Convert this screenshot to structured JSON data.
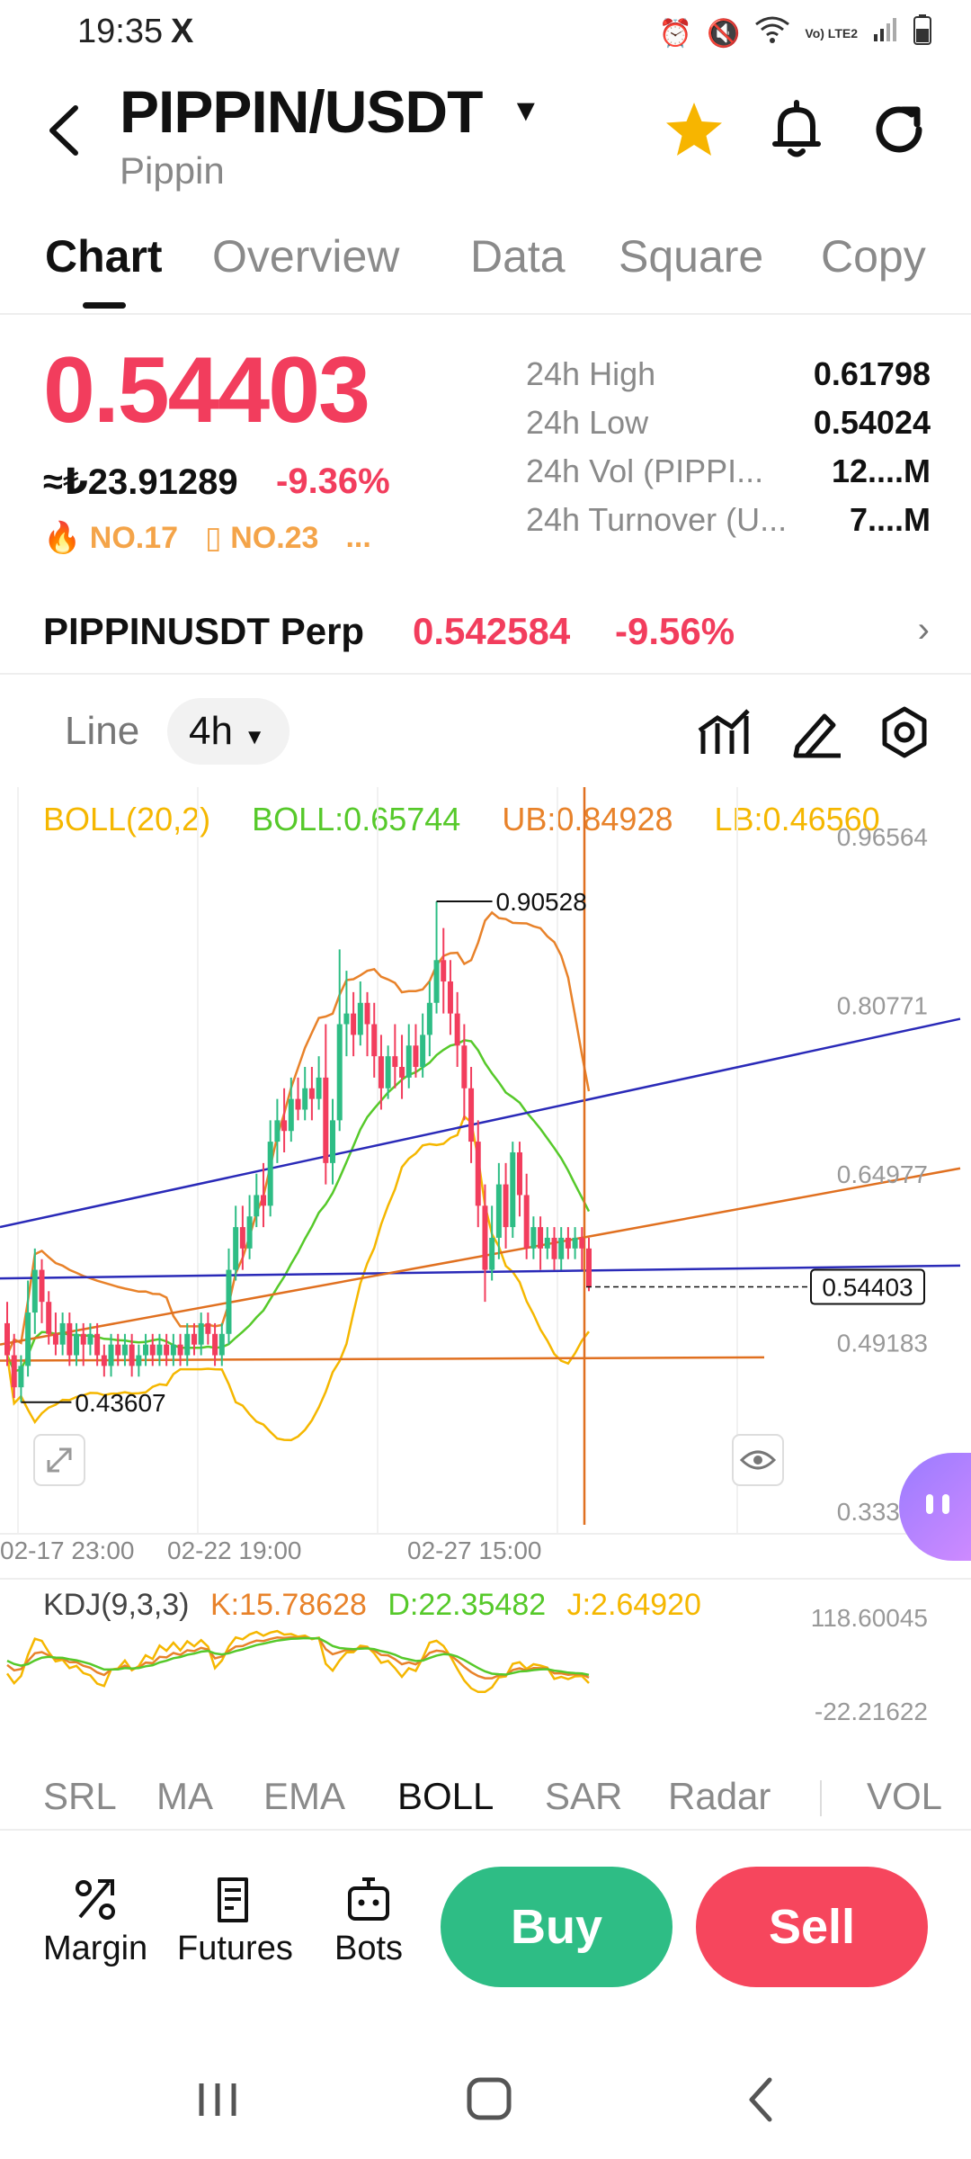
{
  "status": {
    "time": "19:35",
    "x_icon": "X",
    "network": "Vo) LTE2"
  },
  "header": {
    "title": "PIPPIN/USDT",
    "subtitle": "Pippin",
    "icons": [
      "back-arrow-icon",
      "star-icon",
      "bell-icon",
      "refresh-icon"
    ],
    "star_color": "#f7b500"
  },
  "tabs": [
    "Chart",
    "Overview",
    "Data",
    "Square",
    "Copy"
  ],
  "active_tab": "Chart",
  "price": {
    "last": "0.54403",
    "fiat": "≈₺23.91289",
    "change_pct": "-9.36%",
    "rank1": "NO.17",
    "rank2": "NO.23",
    "rank_more": "...",
    "stats": [
      {
        "label": "24h  High",
        "value": "0.61798"
      },
      {
        "label": "24h  Low",
        "value": "0.54024"
      },
      {
        "label": "24h  Vol (PIPPI...",
        "value": "12....M"
      },
      {
        "label": "24h  Turnover (U...",
        "value": "7....M"
      }
    ]
  },
  "perp": {
    "name": "PIPPINUSDT Perp",
    "price": "0.542584",
    "change_pct": "-9.56%"
  },
  "toolbar": {
    "line_label": "Line",
    "interval_label": "4h"
  },
  "boll": {
    "name": "BOLL(20,2)",
    "mid": "BOLL:0.65744",
    "ub": "UB:0.84928",
    "lb": "LB:0.46560"
  },
  "kdj": {
    "name": "KDJ(9,3,3)",
    "k": "K:15.78628",
    "d": "D:22.35482",
    "j": "J:2.64920",
    "axis_top": "118.60045",
    "axis_bottom": "-22.21622"
  },
  "chart_data": {
    "type": "candlestick",
    "y_axis_labels": [
      "0.96564",
      "0.80771",
      "0.64977",
      "0.49183",
      "0.33389"
    ],
    "ylim": [
      0.33389,
      0.96564
    ],
    "x_labels": [
      "02-17 23:00",
      "02-22 19:00",
      "02-27 15:00"
    ],
    "annotations": {
      "high": "0.90528",
      "low": "0.43607",
      "last": "0.54403"
    },
    "candles": [
      [
        0.51,
        0.48,
        0.53,
        0.47
      ],
      [
        0.48,
        0.45,
        0.5,
        0.44
      ],
      [
        0.45,
        0.47,
        0.48,
        0.436
      ],
      [
        0.47,
        0.52,
        0.55,
        0.46
      ],
      [
        0.52,
        0.56,
        0.58,
        0.5
      ],
      [
        0.56,
        0.53,
        0.57,
        0.51
      ],
      [
        0.53,
        0.5,
        0.54,
        0.49
      ],
      [
        0.5,
        0.49,
        0.52,
        0.48
      ],
      [
        0.49,
        0.51,
        0.52,
        0.48
      ],
      [
        0.51,
        0.48,
        0.52,
        0.47
      ],
      [
        0.48,
        0.5,
        0.51,
        0.47
      ],
      [
        0.5,
        0.49,
        0.51,
        0.47
      ],
      [
        0.49,
        0.5,
        0.51,
        0.48
      ],
      [
        0.5,
        0.48,
        0.51,
        0.47
      ],
      [
        0.48,
        0.47,
        0.49,
        0.46
      ],
      [
        0.47,
        0.49,
        0.5,
        0.46
      ],
      [
        0.49,
        0.48,
        0.5,
        0.47
      ],
      [
        0.48,
        0.49,
        0.5,
        0.47
      ],
      [
        0.49,
        0.47,
        0.5,
        0.46
      ],
      [
        0.47,
        0.48,
        0.49,
        0.46
      ],
      [
        0.48,
        0.49,
        0.5,
        0.47
      ],
      [
        0.49,
        0.48,
        0.5,
        0.47
      ],
      [
        0.48,
        0.49,
        0.5,
        0.47
      ],
      [
        0.49,
        0.48,
        0.5,
        0.47
      ],
      [
        0.48,
        0.49,
        0.5,
        0.47
      ],
      [
        0.49,
        0.48,
        0.5,
        0.47
      ],
      [
        0.48,
        0.5,
        0.51,
        0.47
      ],
      [
        0.5,
        0.49,
        0.51,
        0.48
      ],
      [
        0.49,
        0.51,
        0.52,
        0.48
      ],
      [
        0.51,
        0.5,
        0.52,
        0.49
      ],
      [
        0.5,
        0.48,
        0.51,
        0.47
      ],
      [
        0.48,
        0.5,
        0.51,
        0.47
      ],
      [
        0.5,
        0.56,
        0.58,
        0.49
      ],
      [
        0.56,
        0.6,
        0.62,
        0.55
      ],
      [
        0.6,
        0.58,
        0.62,
        0.56
      ],
      [
        0.58,
        0.61,
        0.63,
        0.57
      ],
      [
        0.61,
        0.63,
        0.65,
        0.6
      ],
      [
        0.63,
        0.62,
        0.66,
        0.6
      ],
      [
        0.62,
        0.68,
        0.7,
        0.61
      ],
      [
        0.68,
        0.7,
        0.72,
        0.66
      ],
      [
        0.7,
        0.69,
        0.73,
        0.67
      ],
      [
        0.69,
        0.72,
        0.74,
        0.68
      ],
      [
        0.72,
        0.71,
        0.74,
        0.7
      ],
      [
        0.71,
        0.73,
        0.75,
        0.7
      ],
      [
        0.73,
        0.72,
        0.75,
        0.7
      ],
      [
        0.72,
        0.74,
        0.76,
        0.71
      ],
      [
        0.74,
        0.66,
        0.79,
        0.64
      ],
      [
        0.66,
        0.7,
        0.72,
        0.64
      ],
      [
        0.7,
        0.79,
        0.86,
        0.69
      ],
      [
        0.79,
        0.8,
        0.84,
        0.76
      ],
      [
        0.8,
        0.78,
        0.82,
        0.76
      ],
      [
        0.78,
        0.81,
        0.83,
        0.77
      ],
      [
        0.81,
        0.79,
        0.82,
        0.76
      ],
      [
        0.79,
        0.76,
        0.81,
        0.74
      ],
      [
        0.76,
        0.73,
        0.78,
        0.71
      ],
      [
        0.73,
        0.76,
        0.77,
        0.72
      ],
      [
        0.76,
        0.75,
        0.79,
        0.73
      ],
      [
        0.75,
        0.74,
        0.78,
        0.72
      ],
      [
        0.74,
        0.77,
        0.79,
        0.73
      ],
      [
        0.77,
        0.75,
        0.79,
        0.74
      ],
      [
        0.75,
        0.78,
        0.8,
        0.74
      ],
      [
        0.78,
        0.81,
        0.83,
        0.76
      ],
      [
        0.81,
        0.85,
        0.905,
        0.8
      ],
      [
        0.85,
        0.83,
        0.88,
        0.8
      ],
      [
        0.83,
        0.8,
        0.85,
        0.78
      ],
      [
        0.8,
        0.77,
        0.82,
        0.75
      ],
      [
        0.77,
        0.73,
        0.79,
        0.7
      ],
      [
        0.73,
        0.68,
        0.75,
        0.66
      ],
      [
        0.68,
        0.62,
        0.7,
        0.6
      ],
      [
        0.62,
        0.56,
        0.64,
        0.53
      ],
      [
        0.56,
        0.59,
        0.62,
        0.55
      ],
      [
        0.59,
        0.64,
        0.66,
        0.57
      ],
      [
        0.64,
        0.6,
        0.66,
        0.58
      ],
      [
        0.6,
        0.67,
        0.68,
        0.59
      ],
      [
        0.67,
        0.63,
        0.68,
        0.61
      ],
      [
        0.63,
        0.58,
        0.65,
        0.57
      ],
      [
        0.58,
        0.6,
        0.61,
        0.57
      ],
      [
        0.6,
        0.58,
        0.61,
        0.56
      ],
      [
        0.58,
        0.59,
        0.6,
        0.57
      ],
      [
        0.59,
        0.57,
        0.6,
        0.56
      ],
      [
        0.57,
        0.59,
        0.6,
        0.56
      ],
      [
        0.59,
        0.58,
        0.6,
        0.57
      ],
      [
        0.58,
        0.59,
        0.6,
        0.57
      ],
      [
        0.59,
        0.58,
        0.6,
        0.56
      ],
      [
        0.58,
        0.544,
        0.59,
        0.54
      ]
    ],
    "colors": {
      "up": "#2ebd85",
      "down": "#f23d5d"
    }
  },
  "indicator_tabs": [
    "SRL",
    "MA",
    "EMA",
    "BOLL",
    "SAR",
    "Radar",
    "VOL"
  ],
  "active_indicator": "BOLL",
  "bottom": {
    "margin": "Margin",
    "futures": "Futures",
    "bots": "Bots",
    "buy": "Buy",
    "sell": "Sell"
  }
}
